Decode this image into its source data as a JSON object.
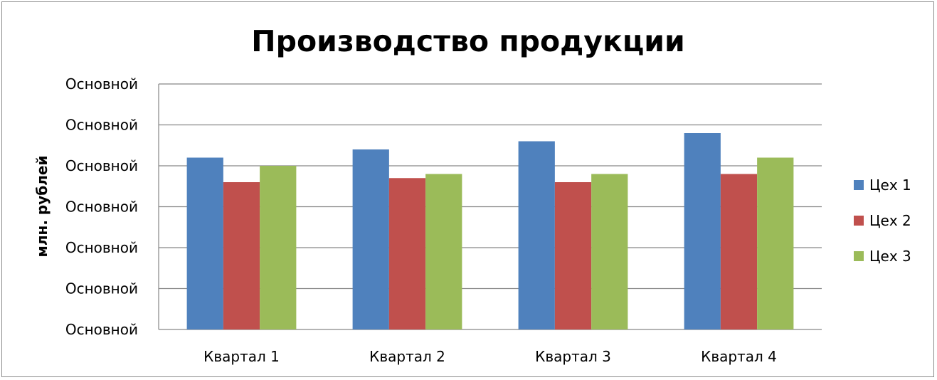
{
  "chart_data": {
    "type": "bar",
    "title": "Производство продукции",
    "xlabel": "",
    "ylabel": "млн. рублей",
    "categories": [
      "Квартал 1",
      "Квартал 2",
      "Квартал 3",
      "Квартал 4"
    ],
    "y_tick_labels": [
      "Основной",
      "Основной",
      "Основной",
      "Основной",
      "Основной",
      "Основной",
      "Основной"
    ],
    "ylim": [
      0,
      6
    ],
    "grid": true,
    "legend_position": "right",
    "series": [
      {
        "name": "Цех 1",
        "color": "#4F81BD",
        "values": [
          4.2,
          4.4,
          4.6,
          4.8
        ]
      },
      {
        "name": "Цех 2",
        "color": "#C0504D",
        "values": [
          3.6,
          3.7,
          3.6,
          3.8
        ]
      },
      {
        "name": "Цех 3",
        "color": "#9BBB59",
        "values": [
          4.0,
          3.8,
          3.8,
          4.2
        ]
      }
    ]
  }
}
